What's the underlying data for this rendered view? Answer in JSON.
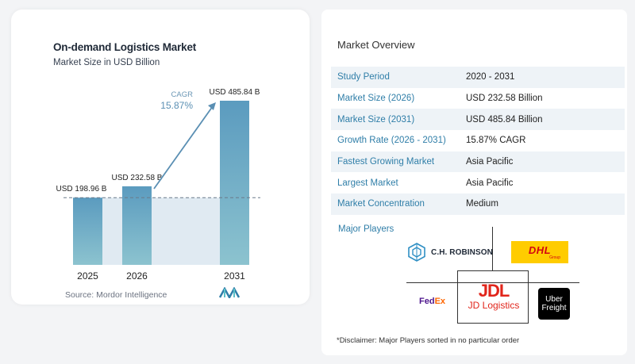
{
  "chart_data": {
    "type": "bar",
    "title": "On-demand Logistics Market",
    "subtitle": "Market Size in USD Billion",
    "categories": [
      "2025",
      "2026",
      "2031"
    ],
    "values": [
      198.96,
      232.58,
      485.84
    ],
    "value_labels": [
      "USD 198.96 B",
      "USD 232.58 B",
      "USD 485.84 B"
    ],
    "ylim": [
      0,
      485.84
    ],
    "xlabel": "",
    "ylabel": "",
    "cagr_label": "CAGR",
    "cagr_value": "15.87%",
    "grid": false,
    "bar_color": "#5b9bbf",
    "bar_color_light": "#8cc3cf",
    "highlight_color": "#e0eaf2",
    "arrow_color": "#5a8fb3"
  },
  "source": "Source:  Mordor Intelligence",
  "overview": {
    "title": "Market Overview",
    "rows": [
      {
        "label": "Study Period",
        "value": "2020 - 2031"
      },
      {
        "label": "Market Size (2026)",
        "value": "USD 232.58 Billion"
      },
      {
        "label": "Market Size (2031)",
        "value": "USD 485.84 Billion"
      },
      {
        "label": "Growth Rate (2026 - 2031)",
        "value": "15.87% CAGR"
      },
      {
        "label": "Fastest Growing Market",
        "value": "Asia Pacific"
      },
      {
        "label": "Largest Market",
        "value": "Asia Pacific"
      },
      {
        "label": "Market Concentration",
        "value": "Medium"
      }
    ]
  },
  "players": {
    "title": "Major Players",
    "chr": "C.H. ROBINSON",
    "dhl": "DHL",
    "dhl_sub": "Group",
    "fedex_fed": "Fed",
    "fedex_ex": "Ex",
    "jd_mark": "JDL",
    "jd_text": "JD Logistics",
    "uber_line1": "Uber",
    "uber_line2": "Freight"
  },
  "disclaimer": "*Disclaimer: Major Players sorted in no particular order"
}
